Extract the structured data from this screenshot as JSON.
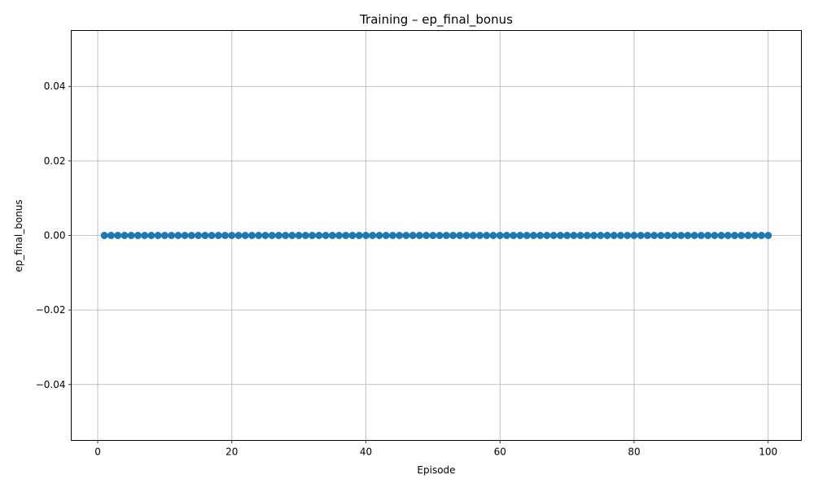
{
  "chart_data": {
    "type": "line",
    "title": "Training – ep_final_bonus",
    "xlabel": "Episode",
    "ylabel": "ep_final_bonus",
    "xlim": [
      -3.95,
      104.95
    ],
    "ylim": [
      -0.055,
      0.055
    ],
    "xticks": [
      0,
      20,
      40,
      60,
      80,
      100
    ],
    "xtick_labels": [
      "0",
      "20",
      "40",
      "60",
      "80",
      "100"
    ],
    "yticks": [
      -0.04,
      -0.02,
      0.0,
      0.02,
      0.04
    ],
    "ytick_labels": [
      "−0.04",
      "−0.02",
      "0.00",
      "0.02",
      "0.04"
    ],
    "grid": true,
    "marker": "circle",
    "series": [
      {
        "color": "#1f77b4",
        "x": [
          1,
          2,
          3,
          4,
          5,
          6,
          7,
          8,
          9,
          10,
          11,
          12,
          13,
          14,
          15,
          16,
          17,
          18,
          19,
          20,
          21,
          22,
          23,
          24,
          25,
          26,
          27,
          28,
          29,
          30,
          31,
          32,
          33,
          34,
          35,
          36,
          37,
          38,
          39,
          40,
          41,
          42,
          43,
          44,
          45,
          46,
          47,
          48,
          49,
          50,
          51,
          52,
          53,
          54,
          55,
          56,
          57,
          58,
          59,
          60,
          61,
          62,
          63,
          64,
          65,
          66,
          67,
          68,
          69,
          70,
          71,
          72,
          73,
          74,
          75,
          76,
          77,
          78,
          79,
          80,
          81,
          82,
          83,
          84,
          85,
          86,
          87,
          88,
          89,
          90,
          91,
          92,
          93,
          94,
          95,
          96,
          97,
          98,
          99,
          100
        ],
        "y": [
          0,
          0,
          0,
          0,
          0,
          0,
          0,
          0,
          0,
          0,
          0,
          0,
          0,
          0,
          0,
          0,
          0,
          0,
          0,
          0,
          0,
          0,
          0,
          0,
          0,
          0,
          0,
          0,
          0,
          0,
          0,
          0,
          0,
          0,
          0,
          0,
          0,
          0,
          0,
          0,
          0,
          0,
          0,
          0,
          0,
          0,
          0,
          0,
          0,
          0,
          0,
          0,
          0,
          0,
          0,
          0,
          0,
          0,
          0,
          0,
          0,
          0,
          0,
          0,
          0,
          0,
          0,
          0,
          0,
          0,
          0,
          0,
          0,
          0,
          0,
          0,
          0,
          0,
          0,
          0,
          0,
          0,
          0,
          0,
          0,
          0,
          0,
          0,
          0,
          0,
          0,
          0,
          0,
          0,
          0,
          0,
          0,
          0,
          0,
          0
        ]
      }
    ]
  }
}
